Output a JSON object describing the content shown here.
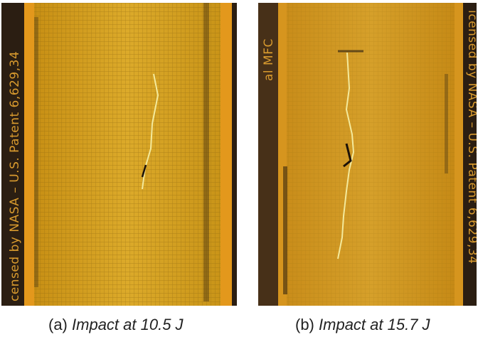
{
  "figure": {
    "panels": [
      {
        "id": "a",
        "prefix": "(a)",
        "caption": "Impact at 10.5 J",
        "edge_text_left": "censed by NASA – U.S. Patent 6,629,34"
      },
      {
        "id": "b",
        "prefix": "(b)",
        "caption": "Impact at 15.7 J",
        "edge_text_left": "al MFC",
        "edge_text_right": "icensed by NASA – U.S. Patent 6,629,34"
      }
    ],
    "colors": {
      "sensor_yellow": "#d9a21e",
      "sensor_orange_border": "#e29a20",
      "dark_background": "#2a1d12",
      "crack": "#f3e8a0"
    }
  }
}
